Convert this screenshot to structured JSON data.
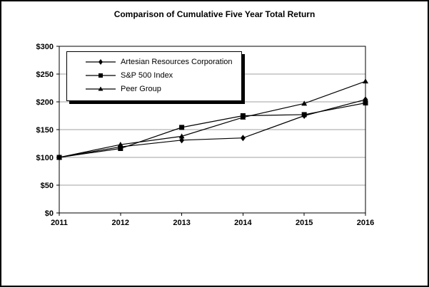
{
  "window": {
    "background_color": "#ffffff",
    "border_color": "#000000"
  },
  "chart_data": {
    "type": "line",
    "title": "Comparison of Cumulative Five Year Total Return",
    "categories": [
      "2011",
      "2012",
      "2013",
      "2014",
      "2015",
      "2016"
    ],
    "series": [
      {
        "name": "Artesian Resources Corporation",
        "marker": "diamond",
        "color": "#000000",
        "values": [
          100,
          119,
          131,
          135,
          175,
          204
        ]
      },
      {
        "name": "S&P 500 Index",
        "marker": "square",
        "color": "#000000",
        "values": [
          100,
          116,
          154,
          175,
          177,
          198
        ]
      },
      {
        "name": "Peer Group",
        "marker": "triangle",
        "color": "#000000",
        "values": [
          100,
          123,
          138,
          172,
          197,
          237
        ]
      }
    ],
    "xlabel": "",
    "ylabel": "",
    "ylim": [
      0,
      300
    ],
    "ytick_step": 50,
    "ytick_prefix": "$",
    "grid": true,
    "gridline_color": "#a0a0a0",
    "axis_color": "#000000",
    "legend_position": "top-left-inside"
  }
}
